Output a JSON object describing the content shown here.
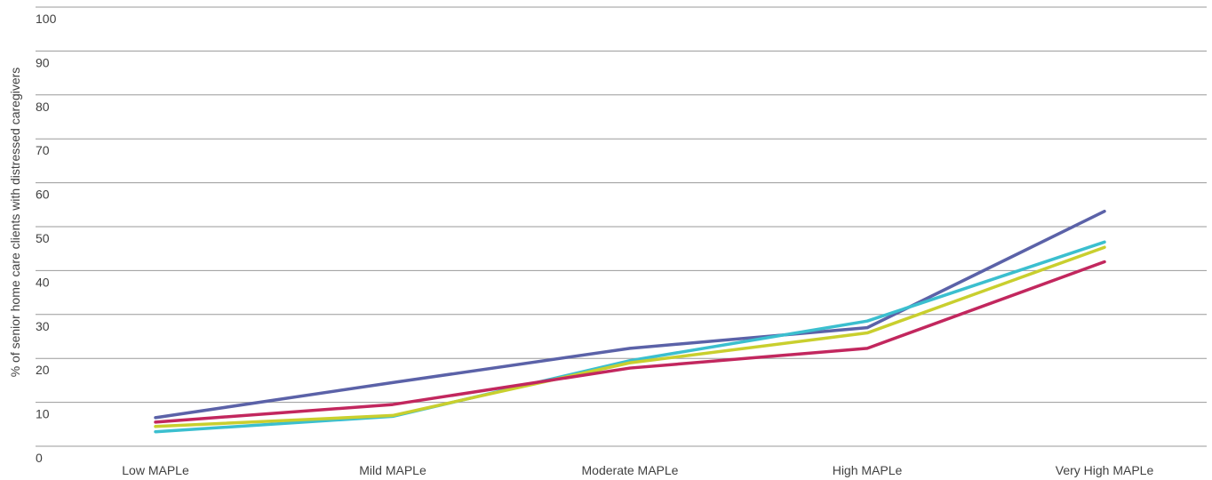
{
  "chart_data": {
    "type": "line",
    "title": "",
    "xlabel": "",
    "ylabel": "% of senior home care clients with distressed caregivers",
    "ylim": [
      0,
      100
    ],
    "yticks": [
      0,
      10,
      20,
      30,
      40,
      50,
      60,
      70,
      80,
      90,
      100
    ],
    "grid": true,
    "legend": "none",
    "categories": [
      "Low MAPLe",
      "Mild MAPLe",
      "Moderate MAPLe",
      "High MAPLe",
      "Very High MAPLe"
    ],
    "series": [
      {
        "color": "#5b62a8",
        "values": [
          6.5,
          14.5,
          22.3,
          27.0,
          53.5
        ]
      },
      {
        "color": "#3bbfcf",
        "values": [
          3.3,
          6.8,
          19.5,
          28.5,
          46.5
        ]
      },
      {
        "color": "#c9cf2e",
        "values": [
          4.5,
          7.0,
          19.0,
          25.8,
          45.3
        ]
      },
      {
        "color": "#c2275e",
        "values": [
          5.5,
          9.5,
          17.8,
          22.3,
          42.0
        ]
      }
    ]
  }
}
